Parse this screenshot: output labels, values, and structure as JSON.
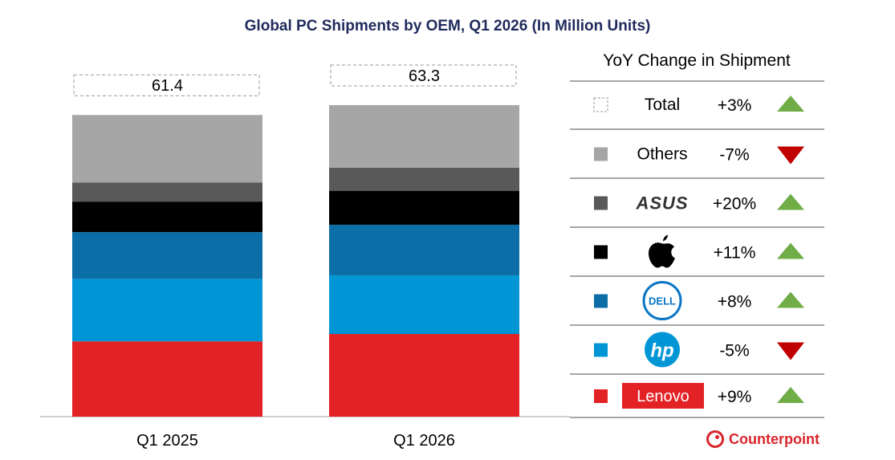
{
  "chart_data": {
    "type": "bar",
    "stacked": true,
    "title": "Global PC Shipments by OEM, Q1 2026 (In Million Units)",
    "categories": [
      "Q1 2025",
      "Q1 2026"
    ],
    "totals": [
      "61.4",
      "63.3"
    ],
    "series": [
      {
        "name": "Lenovo",
        "color": "#e32226",
        "values": [
          15.3,
          16.8
        ],
        "yoy": "+9%",
        "trend": "up"
      },
      {
        "name": "HP",
        "color": "#0096d6",
        "values": [
          12.7,
          11.9
        ],
        "yoy": "-5%",
        "trend": "down"
      },
      {
        "name": "Dell",
        "color": "#0b6ea6",
        "values": [
          9.5,
          10.3
        ],
        "yoy": "+8%",
        "trend": "up"
      },
      {
        "name": "Apple",
        "color": "#000000",
        "values": [
          6.2,
          6.9
        ],
        "yoy": "+11%",
        "trend": "up"
      },
      {
        "name": "ASUS",
        "color": "#595959",
        "values": [
          3.9,
          4.7
        ],
        "yoy": "+20%",
        "trend": "up"
      },
      {
        "name": "Others",
        "color": "#a6a6a6",
        "values": [
          13.7,
          12.7
        ],
        "yoy": "-7%",
        "trend": "down"
      }
    ],
    "total_row": {
      "name": "Total",
      "yoy": "+3%",
      "trend": "up"
    },
    "legend_title": "YoY Change in Shipment",
    "legend_placement": "right",
    "grid": false,
    "ylim": [
      0,
      70
    ],
    "xlabel": "",
    "ylabel": ""
  },
  "colors": {
    "up": "#70ad47",
    "down": "#c00000",
    "title": "#1f2a5c"
  },
  "brand": "Counterpoint"
}
